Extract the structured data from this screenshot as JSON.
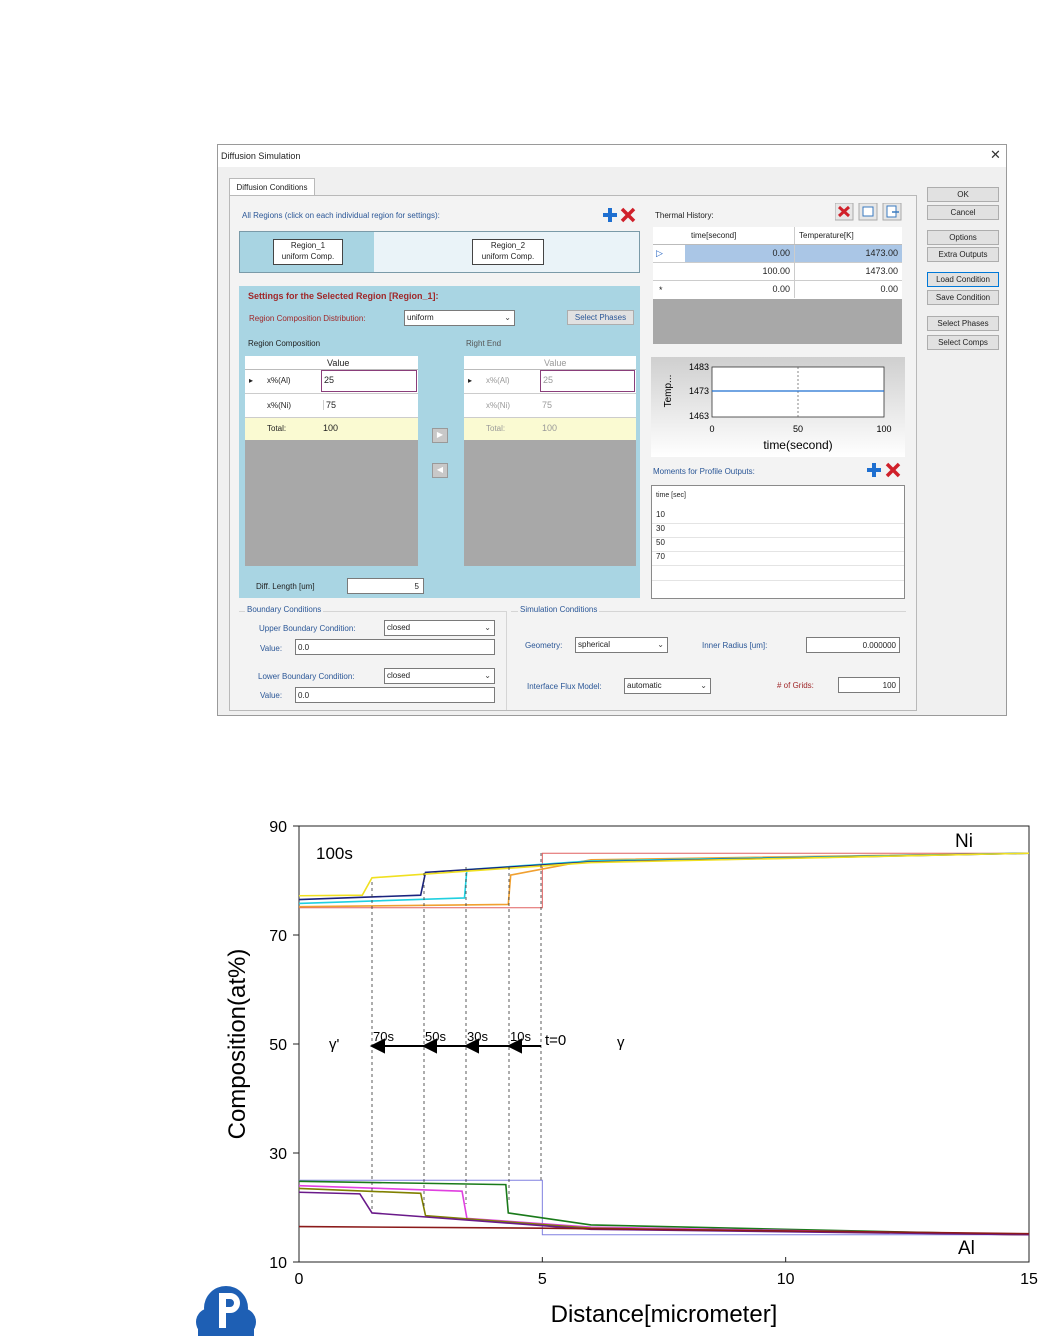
{
  "window": {
    "title": "Diffusion Simulation",
    "close_glyph": "✕"
  },
  "tab": {
    "label": "Diffusion Conditions"
  },
  "buttons": {
    "ok": "OK",
    "cancel": "Cancel",
    "options": "Options",
    "extra_outputs": "Extra Outputs",
    "load_condition": "Load Condition",
    "save_condition": "Save Condition",
    "select_phases": "Select Phases",
    "select_comps": "Select Comps",
    "select_phases_inner": "Select Phases"
  },
  "regions": {
    "header": "All Regions (click on each individual region for settings):",
    "items": [
      {
        "name": "Region_1",
        "type": "uniform Comp."
      },
      {
        "name": "Region_2",
        "type": "uniform Comp."
      }
    ]
  },
  "selected_region": {
    "header": "Settings for the Selected Region [Region_1]:",
    "distribution_label": "Region Composition Distribution:",
    "distribution_value": "uniform",
    "region_composition_label": "Region Composition",
    "right_end_label": "Right End",
    "value_header": "Value",
    "rows": [
      {
        "label": "x%(Al)",
        "value": "25"
      },
      {
        "label": "x%(Ni)",
        "value": "75"
      },
      {
        "label": "Total:",
        "value": "100"
      }
    ],
    "right_rows": [
      {
        "label": "x%(Al)",
        "value": "25"
      },
      {
        "label": "x%(Ni)",
        "value": "75"
      },
      {
        "label": "Total:",
        "value": "100"
      }
    ],
    "diff_length_label": "Diff. Length [um]",
    "diff_length_value": "5"
  },
  "thermal": {
    "label": "Thermal History:",
    "col_time": "time[second]",
    "col_temp": "Temperature[K]",
    "rows": [
      {
        "marker": "▷",
        "time": "0.00",
        "temp": "1473.00"
      },
      {
        "marker": "",
        "time": "100.00",
        "temp": "1473.00"
      },
      {
        "marker": "*",
        "time": "0.00",
        "temp": "0.00"
      }
    ],
    "mini_chart": {
      "ylabel": "Temp...",
      "xlabel": "time(second)",
      "yticks": [
        "1483",
        "1473",
        "1463"
      ],
      "xticks": [
        "0",
        "50",
        "100"
      ],
      "yvalue": 1473
    }
  },
  "moments": {
    "label": "Moments for Profile Outputs:",
    "header": "time [sec]",
    "values": [
      "10",
      "30",
      "50",
      "70"
    ]
  },
  "boundary": {
    "group": "Boundary Conditions",
    "upper_label": "Upper Boundary Condition:",
    "upper_value": "closed",
    "upper_val_label": "Value:",
    "upper_val": "0.0",
    "lower_label": "Lower Boundary Condition:",
    "lower_value": "closed",
    "lower_val_label": "Value:",
    "lower_val": "0.0"
  },
  "simulation": {
    "group": "Simulation Conditions",
    "geometry_label": "Geometry:",
    "geometry_value": "spherical",
    "inner_radius_label": "Inner Radius [um]:",
    "inner_radius_value": "0.000000",
    "flux_label": "Interface Flux Model:",
    "flux_value": "automatic",
    "grids_label": "# of Grids:",
    "grids_value": "100"
  },
  "chart_data": {
    "type": "line",
    "xlabel": "Distance[micrometer]",
    "ylabel": "Composition(at%)",
    "xlim": [
      0,
      15
    ],
    "ylim": [
      10,
      90
    ],
    "xticks": [
      "0",
      "5",
      "10",
      "15"
    ],
    "yticks": [
      "90",
      "70",
      "50",
      "30",
      "10"
    ],
    "annotations": {
      "ni": "Ni",
      "al": "Al",
      "t100": "100s",
      "gamma_prime": "γ'",
      "gamma": "γ",
      "t70": "70s",
      "t50": "50s",
      "t30": "30s",
      "t10": "10s",
      "t0": "t=0"
    },
    "series": [
      {
        "color": "#e06060",
        "x": [
          0,
          5,
          5,
          15
        ],
        "y": [
          75,
          75,
          85,
          85
        ]
      },
      {
        "color": "#8080e0",
        "x": [
          0,
          5,
          5,
          15
        ],
        "y": [
          25,
          25,
          15,
          15
        ]
      },
      {
        "color": "#f0a030",
        "x": [
          0,
          4.3,
          4.35,
          6,
          15
        ],
        "y": [
          75.2,
          75.6,
          81,
          83.8,
          85
        ]
      },
      {
        "color": "#20d0e0",
        "x": [
          0,
          3.4,
          3.45,
          6,
          15
        ],
        "y": [
          75.8,
          76.8,
          82,
          83.6,
          85
        ]
      },
      {
        "color": "#1a237e",
        "x": [
          0,
          2.5,
          2.6,
          6,
          15
        ],
        "y": [
          76.5,
          77.3,
          81.5,
          83.4,
          85
        ]
      },
      {
        "color": "#f0e020",
        "x": [
          0,
          1.3,
          1.5,
          6,
          15
        ],
        "y": [
          77.2,
          77.3,
          80.5,
          83.3,
          85
        ]
      },
      {
        "color": "#1a7a1a",
        "x": [
          0,
          4.25,
          4.3,
          6,
          15
        ],
        "y": [
          24.8,
          24.2,
          19,
          16.8,
          15
        ]
      },
      {
        "color": "#e040e0",
        "x": [
          0,
          3.35,
          3.45,
          6,
          15
        ],
        "y": [
          24,
          23,
          18,
          16.4,
          15
        ]
      },
      {
        "color": "#808000",
        "x": [
          0,
          2.5,
          2.6,
          6,
          15
        ],
        "y": [
          23.5,
          22.6,
          18.5,
          16.2,
          15
        ]
      },
      {
        "color": "#6a1a8a",
        "x": [
          0,
          1.25,
          1.5,
          6,
          15
        ],
        "y": [
          22.8,
          22.5,
          19,
          16,
          15
        ]
      },
      {
        "color": "#8b1a1a",
        "x": [
          0,
          5,
          15
        ],
        "y": [
          16.5,
          16.2,
          15.2
        ]
      }
    ]
  }
}
